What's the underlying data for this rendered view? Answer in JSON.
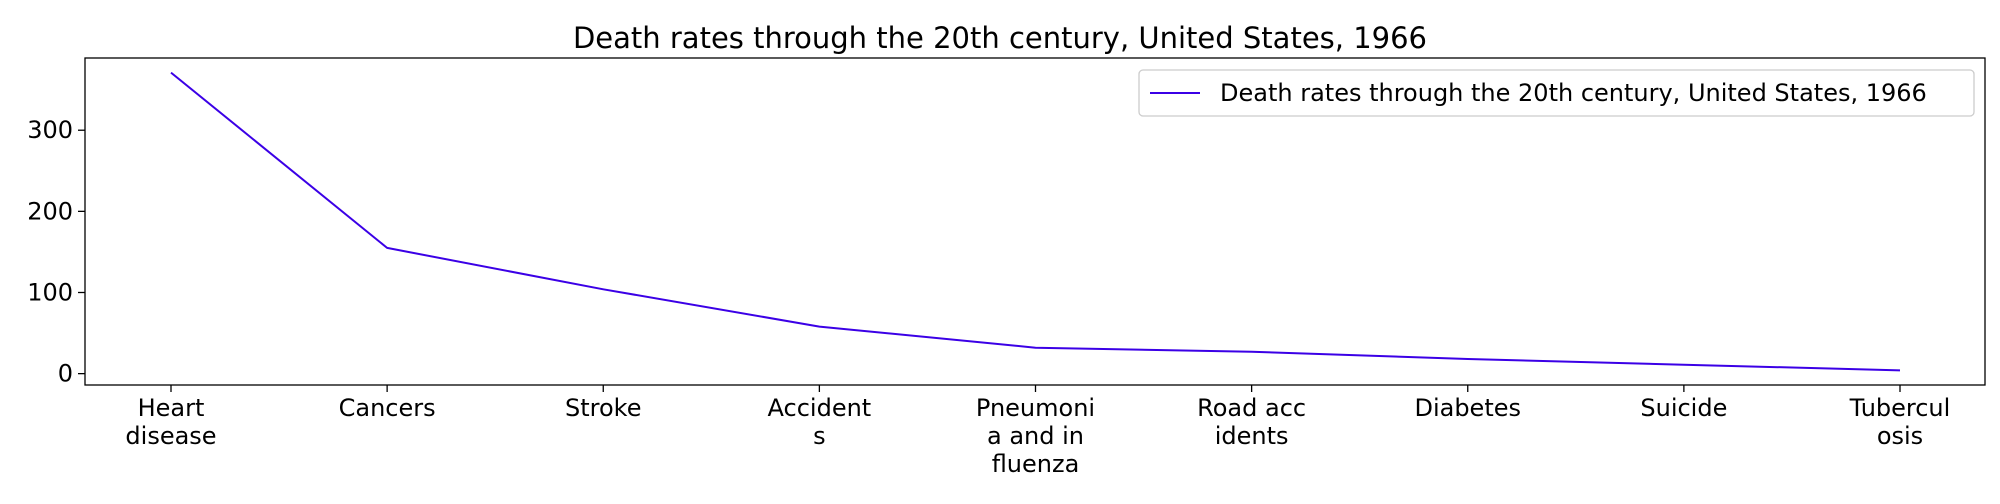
{
  "chart_data": {
    "type": "line",
    "title": "Death rates through the 20th century, United States, 1966",
    "xlabel": "",
    "ylabel": "",
    "categories": [
      [
        "Heart",
        "disease"
      ],
      [
        "Cancers"
      ],
      [
        "Stroke"
      ],
      [
        "Accident",
        "s"
      ],
      [
        "Pneumoni",
        "a and in",
        "fluenza"
      ],
      [
        "Road acc",
        "idents"
      ],
      [
        "Diabetes"
      ],
      [
        "Suicide"
      ],
      [
        "Tubercul",
        "osis"
      ]
    ],
    "series": [
      {
        "name": "Death rates through the 20th century, United States, 1966",
        "values": [
          371,
          155,
          104,
          58,
          32,
          27,
          18,
          11,
          4
        ],
        "color": "#3b00e6"
      }
    ],
    "ylim": [
      -14,
      389
    ],
    "yticks": [
      0,
      100,
      200,
      300
    ],
    "grid": false,
    "legend_position": "top-right"
  }
}
